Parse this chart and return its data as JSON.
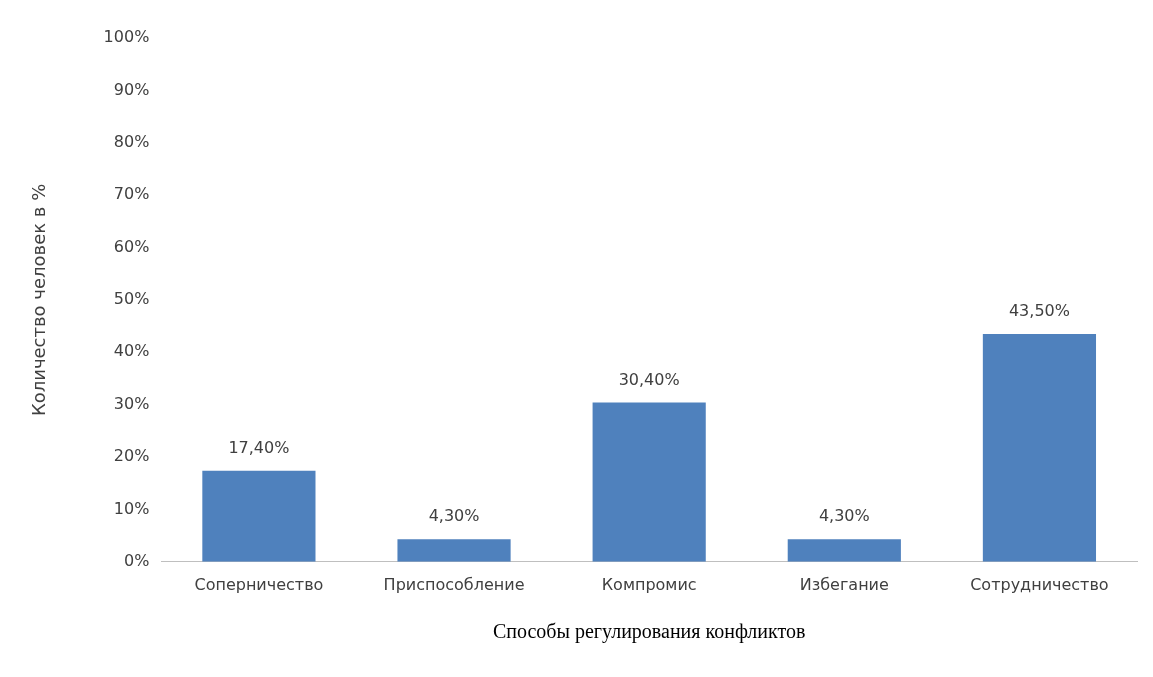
{
  "chart_data": {
    "type": "bar",
    "xlabel": "Способы регулирования конфликтов",
    "ylabel": "Количество человек в %",
    "categories": [
      "Соперничество",
      "Приспособление",
      "Компромис",
      "Избегание",
      "Сотрудничество"
    ],
    "values": [
      17.4,
      4.3,
      30.4,
      4.3,
      43.5
    ],
    "value_labels": [
      "17,40%",
      "4,30%",
      "30,40%",
      "4,30%",
      "43,50%"
    ],
    "color": "#4f81bd",
    "ylim": [
      0,
      100
    ],
    "yticks": [
      {
        "value": 0,
        "label": "0%"
      },
      {
        "value": 10,
        "label": "10%"
      },
      {
        "value": 20,
        "label": "20%"
      },
      {
        "value": 30,
        "label": "30%"
      },
      {
        "value": 40,
        "label": "40%"
      },
      {
        "value": 50,
        "label": "50%"
      },
      {
        "value": 60,
        "label": "60%"
      },
      {
        "value": 70,
        "label": "70%"
      },
      {
        "value": 80,
        "label": "80%"
      },
      {
        "value": 90,
        "label": "90%"
      },
      {
        "value": 100,
        "label": "100%"
      }
    ],
    "grid": false,
    "legend": false
  }
}
